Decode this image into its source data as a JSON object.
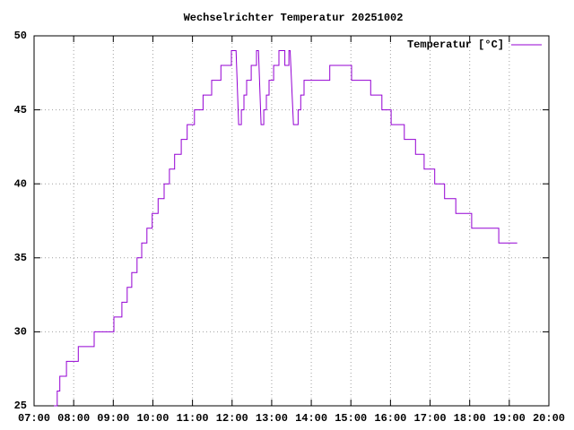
{
  "chart_data": {
    "type": "line",
    "title": "Wechselrichter Temperatur 20251002",
    "x": [
      "07:30",
      "07:35",
      "07:35",
      "07:39",
      "07:39",
      "07:49",
      "07:49",
      "08:07",
      "08:07",
      "08:31",
      "08:31",
      "09:01",
      "09:01",
      "09:13",
      "09:13",
      "09:21",
      "09:21",
      "09:28",
      "09:28",
      "09:36",
      "09:36",
      "09:43",
      "09:43",
      "09:51",
      "09:51",
      "09:59",
      "09:59",
      "10:08",
      "10:08",
      "10:17",
      "10:17",
      "10:25",
      "10:25",
      "10:33",
      "10:33",
      "10:43",
      "10:43",
      "10:52",
      "10:52",
      "11:03",
      "11:03",
      "11:16",
      "11:16",
      "11:29",
      "11:29",
      "11:43",
      "11:43",
      "11:59",
      "11:59",
      "12:06",
      "12:10",
      "12:14",
      "12:14",
      "12:18",
      "12:18",
      "12:22",
      "12:22",
      "12:29",
      "12:29",
      "12:37",
      "12:37",
      "12:40",
      "12:44",
      "12:48",
      "12:48",
      "12:52",
      "12:52",
      "12:56",
      "12:56",
      "13:03",
      "13:03",
      "13:11",
      "13:11",
      "13:20",
      "13:20",
      "13:26",
      "13:26",
      "13:28",
      "13:33",
      "13:40",
      "13:40",
      "13:44",
      "13:44",
      "13:49",
      "13:49",
      "14:28",
      "14:28",
      "15:01",
      "15:01",
      "15:30",
      "15:30",
      "15:47",
      "15:47",
      "16:01",
      "16:01",
      "16:21",
      "16:21",
      "16:38",
      "16:38",
      "16:51",
      "16:51",
      "17:07",
      "17:07",
      "17:22",
      "17:22",
      "17:39",
      "17:39",
      "18:03",
      "18:03",
      "18:44",
      "18:44",
      "19:12"
    ],
    "series": [
      {
        "name": "Temperatur [°C]",
        "color": "#9400d3",
        "values": [
          25,
          25,
          26,
          26,
          27,
          27,
          28,
          28,
          29,
          29,
          30,
          30,
          31,
          31,
          32,
          32,
          33,
          33,
          34,
          34,
          35,
          35,
          36,
          36,
          37,
          37,
          38,
          38,
          39,
          39,
          40,
          40,
          41,
          41,
          42,
          42,
          43,
          43,
          44,
          44,
          45,
          45,
          46,
          46,
          47,
          47,
          48,
          48,
          49,
          49,
          44,
          44,
          45,
          45,
          46,
          46,
          47,
          47,
          48,
          48,
          49,
          49,
          44,
          44,
          45,
          45,
          46,
          46,
          47,
          47,
          48,
          48,
          49,
          49,
          48,
          48,
          49,
          49,
          44,
          44,
          45,
          45,
          46,
          46,
          47,
          47,
          48,
          48,
          47,
          47,
          46,
          46,
          45,
          45,
          44,
          44,
          43,
          43,
          42,
          42,
          41,
          41,
          40,
          40,
          39,
          39,
          38,
          38,
          37,
          37,
          36,
          36
        ]
      }
    ],
    "xlim": [
      "07:00",
      "20:00"
    ],
    "xticks": [
      "07:00",
      "08:00",
      "09:00",
      "10:00",
      "11:00",
      "12:00",
      "13:00",
      "14:00",
      "15:00",
      "16:00",
      "17:00",
      "18:00",
      "19:00",
      "20:00"
    ],
    "ylim": [
      25,
      50
    ],
    "yticks": [
      25,
      30,
      35,
      40,
      45,
      50
    ],
    "grid": true,
    "legend": "top-right"
  }
}
